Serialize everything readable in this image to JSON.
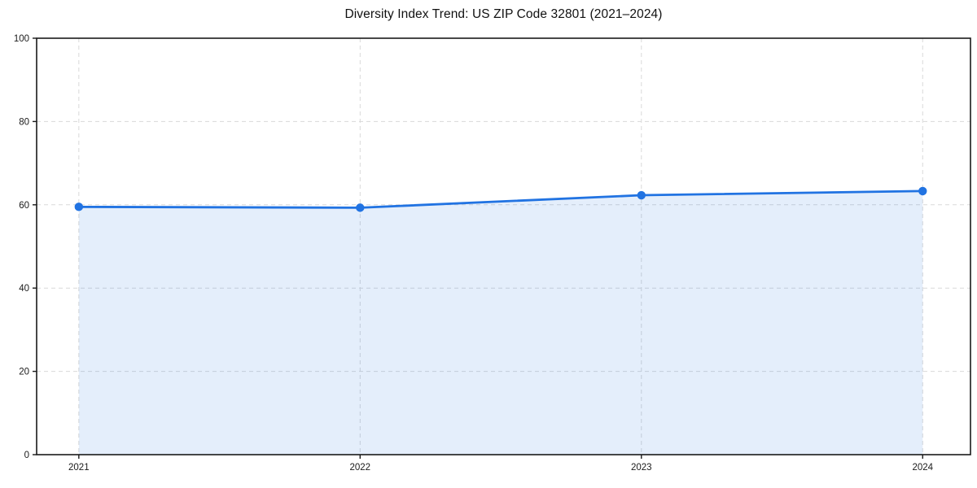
{
  "chart_data": {
    "type": "area",
    "title": "Diversity Index Trend: US ZIP Code 32801 (2021–2024)",
    "categories": [
      2021,
      2022,
      2023,
      2024
    ],
    "series": [
      {
        "name": "Diversity Index",
        "values": [
          59.5,
          59.3,
          62.3,
          63.3
        ]
      }
    ],
    "xlabel": "",
    "ylabel": "",
    "xlim": [
      2020.85,
      2024.17
    ],
    "ylim": [
      0,
      100
    ],
    "yticks": [
      0,
      20,
      40,
      60,
      80,
      100
    ],
    "xticks": [
      2021,
      2022,
      2023,
      2024
    ],
    "grid": {
      "shown": true,
      "style": "dashed",
      "axes": "both"
    },
    "legend": {
      "shown": false
    },
    "colors": {
      "line": "#2173e2",
      "marker": "#2173e2",
      "fill": "#2173e2",
      "fill_opacity": 0.12,
      "grid": "#d9d9d9",
      "spine": "#1a1a1a",
      "tick_label": "#1a1a1a",
      "title": "#111111",
      "background": "#ffffff"
    }
  }
}
